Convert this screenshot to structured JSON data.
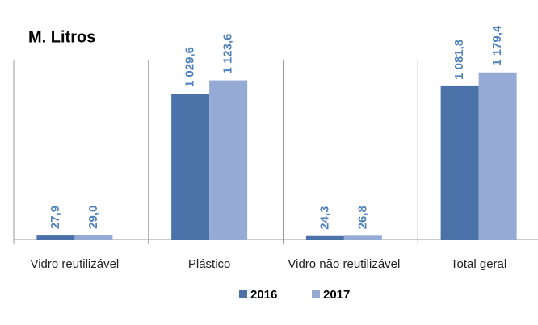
{
  "chart_data": {
    "type": "bar",
    "title": "M. Litros",
    "categories": [
      "Vidro reutilizável",
      "Plástico",
      "Vidro não reutilizável",
      "Total geral"
    ],
    "series": [
      {
        "name": "2016",
        "color": "#4a72a8",
        "values": [
          27.9,
          1029.6,
          24.3,
          1081.8
        ],
        "value_labels": [
          "27,9",
          "1 029,6",
          "24,3",
          "1 081,8"
        ]
      },
      {
        "name": "2017",
        "color": "#95abd5",
        "values": [
          29.0,
          1123.6,
          26.8,
          1179.4
        ],
        "value_labels": [
          "29,0",
          "1 123,6",
          "26,8",
          "1 179,4"
        ]
      }
    ],
    "ylim": [
      0,
      1400
    ],
    "legend": "bottom"
  }
}
